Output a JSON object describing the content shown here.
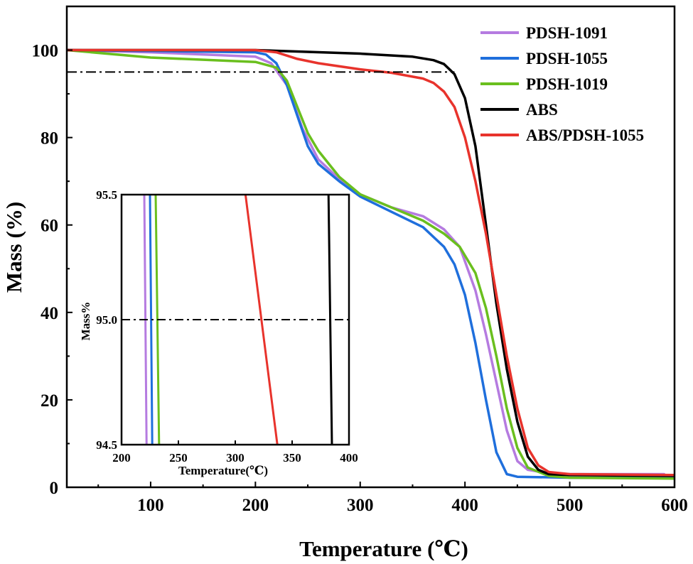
{
  "chart_data": [
    {
      "type": "line",
      "title": "",
      "xlabel": "Temperature (℃)",
      "ylabel": "Mass (%)",
      "xlim": [
        20,
        600
      ],
      "ylim": [
        0,
        110
      ],
      "xticks": [
        "100",
        "200",
        "300",
        "400",
        "500",
        "600"
      ],
      "xtick_values": [
        100,
        200,
        300,
        400,
        500,
        600
      ],
      "yticks": [
        "0",
        "20",
        "40",
        "60",
        "80",
        "100"
      ],
      "ytick_values": [
        0,
        20,
        40,
        60,
        80,
        100
      ],
      "reference_line": {
        "y": 95,
        "style": "dash-dot",
        "x_from": 20,
        "x_to": 390
      },
      "legend_position": "top-right",
      "series": [
        {
          "name": "PDSH-1091",
          "color": "#b57be0",
          "x": [
            20,
            100,
            200,
            215,
            230,
            245,
            260,
            280,
            300,
            330,
            360,
            380,
            395,
            410,
            420,
            430,
            440,
            450,
            460,
            480,
            500,
            550,
            590
          ],
          "y": [
            100,
            99.5,
            98.5,
            97,
            92,
            82,
            75,
            70.5,
            67,
            64,
            62,
            59,
            55,
            45,
            35,
            24,
            13,
            6,
            4,
            3.2,
            3.0,
            3.0,
            3.0
          ]
        },
        {
          "name": "PDSH-1055",
          "color": "#1f6fdc",
          "x": [
            20,
            100,
            200,
            210,
            220,
            230,
            240,
            250,
            260,
            280,
            300,
            330,
            360,
            380,
            390,
            400,
            410,
            420,
            430,
            440,
            450,
            500,
            600
          ],
          "y": [
            100,
            99.8,
            99.5,
            99,
            97,
            92,
            85,
            78,
            74,
            70,
            66.5,
            63,
            59.5,
            55,
            51,
            44,
            33,
            20,
            8,
            3,
            2.4,
            2.2,
            2.2
          ]
        },
        {
          "name": "PDSH-1019",
          "color": "#6abf1e",
          "x": [
            20,
            100,
            200,
            220,
            230,
            240,
            250,
            260,
            280,
            300,
            330,
            360,
            380,
            395,
            410,
            420,
            430,
            440,
            450,
            460,
            480,
            500,
            600
          ],
          "y": [
            100,
            98.3,
            97.3,
            96,
            93,
            87,
            81,
            77,
            71,
            67,
            64,
            61,
            58,
            55,
            49,
            41,
            30,
            18,
            9,
            4.5,
            2.6,
            2.2,
            2.0
          ]
        },
        {
          "name": "ABS",
          "color": "#000000",
          "x": [
            20,
            200,
            300,
            350,
            370,
            380,
            390,
            400,
            410,
            420,
            430,
            440,
            450,
            460,
            470,
            480,
            500,
            600
          ],
          "y": [
            100,
            100,
            99.2,
            98.5,
            97.7,
            96.8,
            94.5,
            89,
            78,
            60,
            42,
            27,
            15,
            7,
            4,
            3,
            2.8,
            2.6
          ]
        },
        {
          "name": "ABS/PDSH-1055",
          "color": "#e8332c",
          "x": [
            20,
            200,
            220,
            240,
            260,
            300,
            330,
            360,
            370,
            380,
            390,
            400,
            410,
            420,
            430,
            440,
            450,
            460,
            470,
            480,
            500,
            600
          ],
          "y": [
            100,
            100,
            99.5,
            98,
            97,
            95.6,
            94.8,
            93.5,
            92.5,
            90.5,
            87,
            80,
            70,
            58,
            44,
            30,
            18,
            9,
            5,
            3.5,
            3,
            2.8
          ]
        }
      ]
    },
    {
      "type": "line",
      "title": "",
      "xlabel": "Temperature(℃)",
      "ylabel": "Mass%",
      "xlim": [
        200,
        400
      ],
      "ylim": [
        94.5,
        95.5
      ],
      "xticks": [
        "200",
        "250",
        "300",
        "350",
        "400"
      ],
      "xtick_values": [
        200,
        250,
        300,
        350,
        400
      ],
      "yticks": [
        "94.5",
        "95.0",
        "95.5"
      ],
      "ytick_values": [
        94.5,
        95.0,
        95.5
      ],
      "reference_line": {
        "y": 95.0,
        "style": "dash-dot",
        "x_from": 200,
        "x_to": 400
      },
      "series": [
        {
          "name": "PDSH-1091",
          "color": "#b57be0",
          "x": [
            220,
            222
          ],
          "y": [
            95.5,
            94.5
          ]
        },
        {
          "name": "PDSH-1055",
          "color": "#1f6fdc",
          "x": [
            225,
            227
          ],
          "y": [
            95.5,
            94.5
          ]
        },
        {
          "name": "PDSH-1019",
          "color": "#6abf1e",
          "x": [
            230,
            233
          ],
          "y": [
            95.5,
            94.5
          ]
        },
        {
          "name": "ABS",
          "color": "#000000",
          "x": [
            382,
            385
          ],
          "y": [
            95.5,
            94.5
          ]
        },
        {
          "name": "ABS/PDSH-1055",
          "color": "#e8332c",
          "x": [
            309,
            337
          ],
          "y": [
            95.5,
            94.5
          ]
        }
      ]
    }
  ]
}
